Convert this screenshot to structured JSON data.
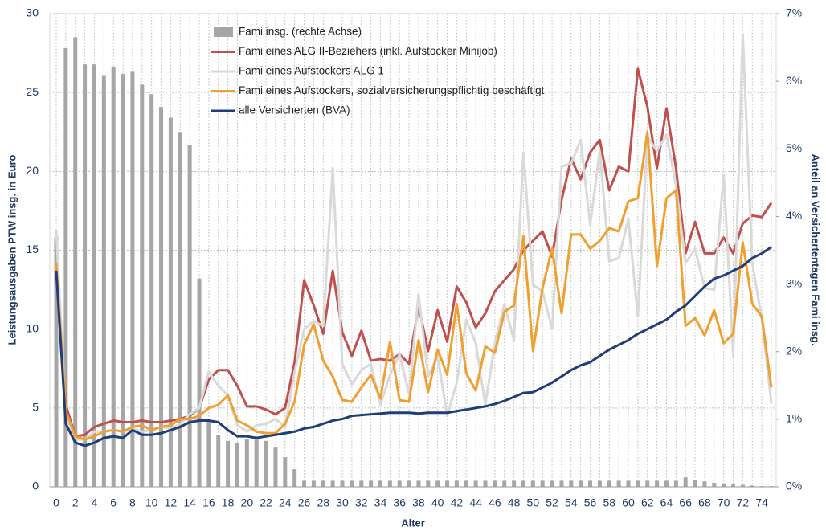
{
  "chart_data": {
    "type": "combo",
    "xlabel": "Alter",
    "ylabel": "Leistungsausgaben PTW insg. in Euro",
    "y2label": "Anteil an Versichertentagen Fami insg.",
    "categories": [
      0,
      null,
      2,
      null,
      4,
      null,
      6,
      null,
      8,
      null,
      10,
      null,
      12,
      null,
      14,
      null,
      16,
      null,
      18,
      null,
      20,
      null,
      22,
      null,
      24,
      null,
      26,
      null,
      28,
      null,
      30,
      null,
      32,
      null,
      34,
      null,
      36,
      null,
      38,
      null,
      40,
      null,
      42,
      null,
      44,
      null,
      46,
      null,
      48,
      null,
      50,
      null,
      52,
      null,
      54,
      null,
      56,
      null,
      58,
      null,
      60,
      null,
      62,
      null,
      64,
      null,
      66,
      null,
      68,
      null,
      70,
      null,
      72,
      null,
      74,
      null
    ],
    "ylim": [
      0,
      30
    ],
    "yticks": [
      0,
      5,
      10,
      15,
      20,
      25,
      30
    ],
    "y2lim": [
      0,
      7
    ],
    "y2ticks": [
      {
        "value": 0,
        "label": "0%"
      },
      {
        "value": 1,
        "label": "1%"
      },
      {
        "value": 2,
        "label": "2%"
      },
      {
        "value": 3,
        "label": "3%"
      },
      {
        "value": 4,
        "label": "4%"
      },
      {
        "value": 5,
        "label": "5%"
      },
      {
        "value": 6,
        "label": "6%"
      },
      {
        "value": 7,
        "label": "7%"
      }
    ],
    "grid": true,
    "series": [
      {
        "name": "Fami insg. (rechte Achse)",
        "type": "bar",
        "axis": "y2",
        "color": "#a6a6a6",
        "values": [
          3.7,
          6.49,
          6.65,
          6.25,
          6.25,
          6.09,
          6.21,
          6.11,
          6.14,
          5.95,
          5.81,
          5.62,
          5.46,
          5.25,
          5.06,
          3.08,
          0.98,
          0.77,
          0.68,
          0.65,
          0.7,
          0.7,
          0.68,
          0.58,
          0.44,
          0.26,
          0.09,
          0.09,
          0.09,
          0.09,
          0.09,
          0.09,
          0.09,
          0.09,
          0.09,
          0.09,
          0.09,
          0.09,
          0.09,
          0.09,
          0.09,
          0.09,
          0.09,
          0.09,
          0.09,
          0.09,
          0.09,
          0.09,
          0.09,
          0.09,
          0.09,
          0.09,
          0.09,
          0.09,
          0.09,
          0.09,
          0.09,
          0.09,
          0.09,
          0.09,
          0.09,
          0.09,
          0.09,
          0.09,
          0.09,
          0.09,
          0.14,
          0.1,
          0.08,
          0.06,
          0.05,
          0.04,
          0.03,
          0.02,
          0.01,
          0.01
        ]
      },
      {
        "name": "Fami eines ALG II-Beziehers (inkl. Aufstocker Minijob)",
        "type": "line",
        "color": "#c0504d",
        "values": [
          13.8,
          5.2,
          3.2,
          3.3,
          3.8,
          4.0,
          4.2,
          4.1,
          4.1,
          4.2,
          4.1,
          4.1,
          4.2,
          4.3,
          4.5,
          5.0,
          6.8,
          7.4,
          7.4,
          6.4,
          5.1,
          5.1,
          4.9,
          4.6,
          5.0,
          7.9,
          13.1,
          11.5,
          9.7,
          13.7,
          9.8,
          8.3,
          9.9,
          8.0,
          8.1,
          8.0,
          8.4,
          7.8,
          11.5,
          8.6,
          11.2,
          9.2,
          12.7,
          11.7,
          10.1,
          11.0,
          12.4,
          13.1,
          13.8,
          15.0,
          15.6,
          16.2,
          14.6,
          18.2,
          20.8,
          19.5,
          21.2,
          22.0,
          18.8,
          20.3,
          20.0,
          26.5,
          24.1,
          20.2,
          24.0,
          20.2,
          14.8,
          16.8,
          14.8,
          14.8,
          15.8,
          14.8,
          16.7,
          17.2,
          17.1,
          18.0
        ]
      },
      {
        "name": "Fami eines Aufstockers ALG 1",
        "type": "line",
        "color": "#d9d9d9",
        "values": [
          16.3,
          4.5,
          3.0,
          3.0,
          3.5,
          3.5,
          3.6,
          3.5,
          3.7,
          3.5,
          3.6,
          3.8,
          3.7,
          4.0,
          4.6,
          5.0,
          7.3,
          6.4,
          5.8,
          3.9,
          3.5,
          3.9,
          4.0,
          4.3,
          3.8,
          7.3,
          10.0,
          10.5,
          10.2,
          20.2,
          7.8,
          6.5,
          7.4,
          7.8,
          5.2,
          7.1,
          8.4,
          5.9,
          12.2,
          7.0,
          8.3,
          4.5,
          6.6,
          10.6,
          9.1,
          5.2,
          9.1,
          11.6,
          9.3,
          21.2,
          12.8,
          12.4,
          10.0,
          20.3,
          20.5,
          22.0,
          16.6,
          21.3,
          14.3,
          14.5,
          17.0,
          10.8,
          22.2,
          21.3,
          22.3,
          19.1,
          14.2,
          15.1,
          12.6,
          12.5,
          19.8,
          8.3,
          28.7,
          14.2,
          10.6,
          5.3
        ]
      },
      {
        "name": "Fami eines Aufstockers, sozialversicherungspflichtig beschäftigt",
        "type": "line",
        "color": "#f0a030",
        "values": [
          14.2,
          4.8,
          3.2,
          3.0,
          3.2,
          3.5,
          3.6,
          3.5,
          3.8,
          3.9,
          3.6,
          3.8,
          3.9,
          4.3,
          4.3,
          4.5,
          5.0,
          5.2,
          5.8,
          4.2,
          3.9,
          3.5,
          3.4,
          3.4,
          4.0,
          5.4,
          9.0,
          10.3,
          8.0,
          7.0,
          5.5,
          5.4,
          6.3,
          7.1,
          5.6,
          9.2,
          5.5,
          5.4,
          9.3,
          6.0,
          8.7,
          7.1,
          11.6,
          7.2,
          6.1,
          8.9,
          8.5,
          11.1,
          11.5,
          15.9,
          8.6,
          12.6,
          15.1,
          11.0,
          16.0,
          16.0,
          15.1,
          15.6,
          16.4,
          16.2,
          18.1,
          18.3,
          22.5,
          14.0,
          18.3,
          18.8,
          10.2,
          10.7,
          9.6,
          11.2,
          9.1,
          9.7,
          15.5,
          11.6,
          10.8,
          6.3
        ]
      },
      {
        "name": "alle Versicherten (BVA)",
        "type": "line",
        "color": "#1f3d7a",
        "values": [
          13.7,
          4.0,
          2.8,
          2.6,
          2.8,
          3.1,
          3.2,
          3.1,
          3.6,
          3.3,
          3.3,
          3.4,
          3.6,
          3.8,
          4.1,
          4.2,
          4.2,
          4.1,
          3.6,
          3.2,
          3.2,
          3.1,
          3.2,
          3.3,
          3.4,
          3.5,
          3.7,
          3.8,
          4.0,
          4.2,
          4.3,
          4.5,
          4.55,
          4.6,
          4.65,
          4.7,
          4.7,
          4.7,
          4.65,
          4.7,
          4.7,
          4.7,
          4.8,
          4.9,
          5.0,
          5.1,
          5.25,
          5.45,
          5.7,
          5.95,
          6.0,
          6.3,
          6.6,
          7.0,
          7.4,
          7.7,
          7.9,
          8.3,
          8.7,
          9.0,
          9.3,
          9.7,
          10.0,
          10.3,
          10.6,
          11.1,
          11.5,
          12.1,
          12.7,
          13.2,
          13.4,
          13.7,
          14.0,
          14.5,
          14.8,
          15.2
        ]
      }
    ]
  }
}
